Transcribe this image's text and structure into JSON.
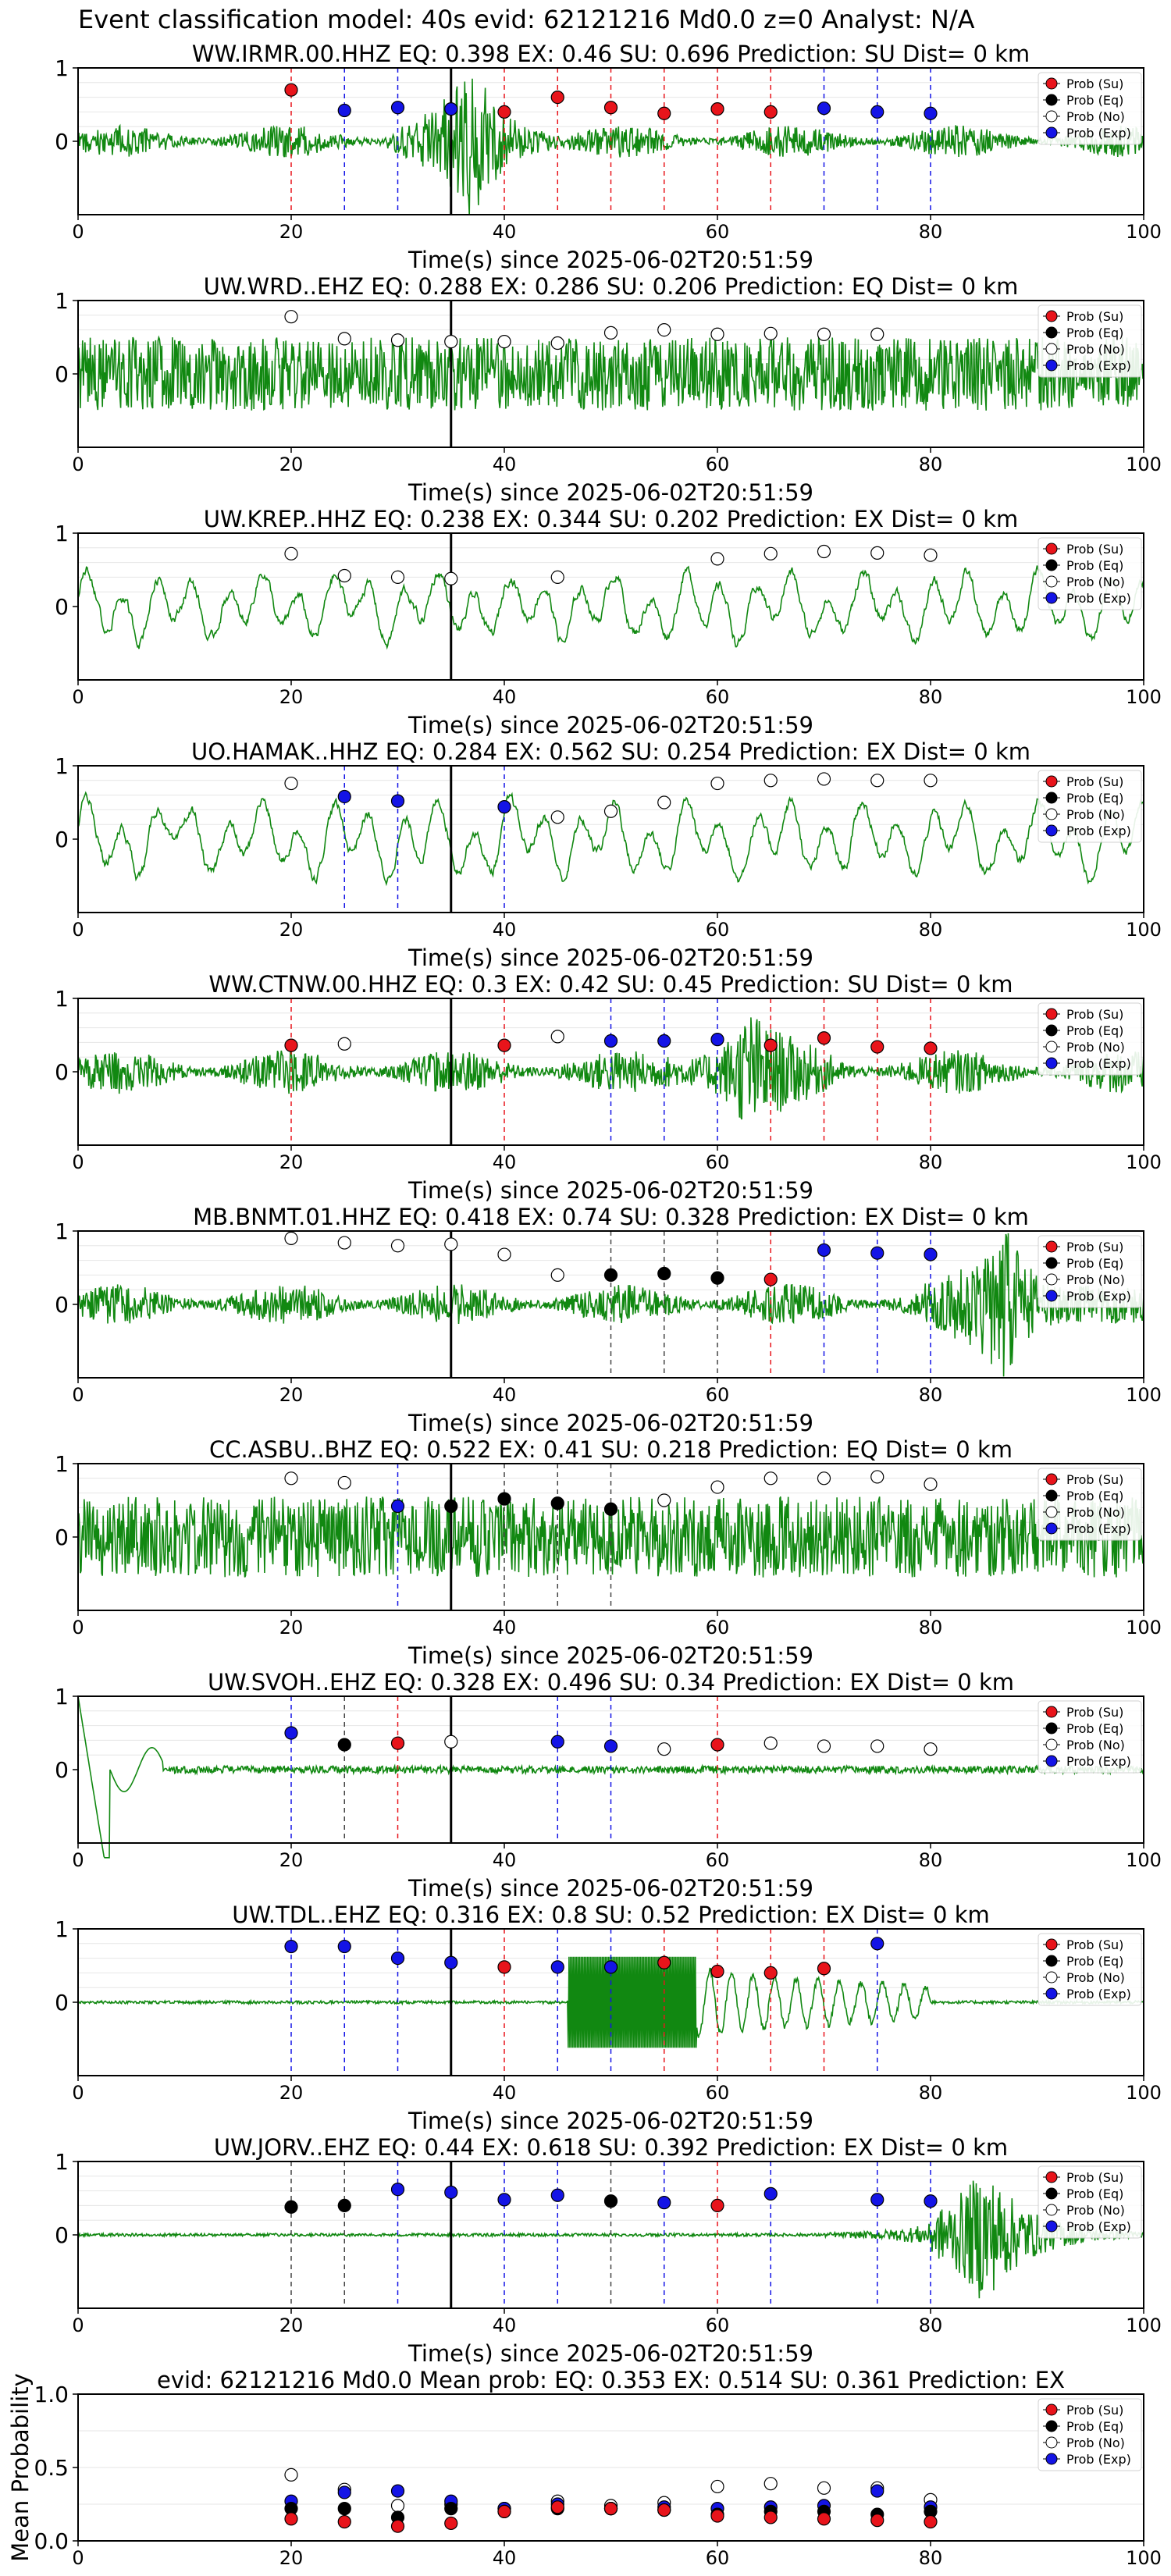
{
  "page_title": "Event classification model: 40s evid: 62121216 Md0.0 z=0 Analyst: N/A",
  "colors": {
    "Su": "#e8141b",
    "Eq": "#000000",
    "No": "#ffffff",
    "Exp": "#1414e6",
    "waveform": "#118811",
    "event_marker": "#000000"
  },
  "legend_labels": [
    "Prob (Su)",
    "Prob (Eq)",
    "Prob (No)",
    "Prob (Exp)"
  ],
  "event_marker_time": 35,
  "chart_data": [
    {
      "type": "line",
      "title": "WW.IRMR.00.HHZ   EQ: 0.398   EX: 0.46   SU: 0.696   Prediction: SU    Dist= 0 km",
      "xlabel": "Time(s) since 2025-06-02T20:51:59",
      "ylabel": "",
      "xlim": [
        0,
        100
      ],
      "ylim": [
        -1,
        1
      ],
      "xticks": [
        "0",
        "20",
        "40",
        "60",
        "80",
        "100"
      ],
      "yticks": [
        "1",
        "0"
      ],
      "waveform": {
        "style": "moderate-noise",
        "amplitude": 0.22,
        "burst_at": 37,
        "burst_amplitude": 0.9
      },
      "points": [
        {
          "x": 20,
          "y": 0.7,
          "cls": "Su"
        },
        {
          "x": 25,
          "y": 0.42,
          "cls": "Exp"
        },
        {
          "x": 30,
          "y": 0.46,
          "cls": "Exp"
        },
        {
          "x": 35,
          "y": 0.44,
          "cls": "Exp"
        },
        {
          "x": 40,
          "y": 0.4,
          "cls": "Su"
        },
        {
          "x": 45,
          "y": 0.6,
          "cls": "Su"
        },
        {
          "x": 50,
          "y": 0.46,
          "cls": "Su"
        },
        {
          "x": 55,
          "y": 0.38,
          "cls": "Su"
        },
        {
          "x": 60,
          "y": 0.44,
          "cls": "Su"
        },
        {
          "x": 65,
          "y": 0.4,
          "cls": "Su"
        },
        {
          "x": 70,
          "y": 0.45,
          "cls": "Exp"
        },
        {
          "x": 75,
          "y": 0.4,
          "cls": "Exp"
        },
        {
          "x": 80,
          "y": 0.38,
          "cls": "Exp"
        }
      ]
    },
    {
      "type": "line",
      "title": "UW.WRD..EHZ   EQ: 0.288  EX: 0.286  SU: 0.206   Prediction: EQ    Dist= 0 km",
      "xlabel": "Time(s) since 2025-06-02T20:51:59",
      "ylabel": "",
      "xlim": [
        0,
        100
      ],
      "ylim": [
        -1,
        1
      ],
      "xticks": [
        "0",
        "20",
        "40",
        "60",
        "80",
        "100"
      ],
      "yticks": [
        "1",
        "0"
      ],
      "waveform": {
        "style": "dense-noise",
        "amplitude": 0.5
      },
      "points": [
        {
          "x": 20,
          "y": 0.78,
          "cls": "No"
        },
        {
          "x": 25,
          "y": 0.48,
          "cls": "No"
        },
        {
          "x": 30,
          "y": 0.46,
          "cls": "No"
        },
        {
          "x": 35,
          "y": 0.44,
          "cls": "No"
        },
        {
          "x": 40,
          "y": 0.44,
          "cls": "No"
        },
        {
          "x": 45,
          "y": 0.42,
          "cls": "No"
        },
        {
          "x": 50,
          "y": 0.56,
          "cls": "No"
        },
        {
          "x": 55,
          "y": 0.6,
          "cls": "No"
        },
        {
          "x": 60,
          "y": 0.54,
          "cls": "No"
        },
        {
          "x": 65,
          "y": 0.55,
          "cls": "No"
        },
        {
          "x": 70,
          "y": 0.54,
          "cls": "No"
        },
        {
          "x": 75,
          "y": 0.54,
          "cls": "No"
        }
      ]
    },
    {
      "type": "line",
      "title": "UW.KREP..HHZ   EQ: 0.238  EX: 0.344  SU: 0.202   Prediction: EX    Dist= 0 km",
      "xlabel": "Time(s) since 2025-06-02T20:51:59",
      "ylabel": "",
      "xlim": [
        0,
        100
      ],
      "ylim": [
        -1,
        1
      ],
      "xticks": [
        "0",
        "20",
        "40",
        "60",
        "80",
        "100"
      ],
      "yticks": [
        "1",
        "0"
      ],
      "waveform": {
        "style": "low-freq",
        "amplitude": 0.55
      },
      "points": [
        {
          "x": 20,
          "y": 0.72,
          "cls": "No"
        },
        {
          "x": 25,
          "y": 0.42,
          "cls": "No"
        },
        {
          "x": 30,
          "y": 0.4,
          "cls": "No"
        },
        {
          "x": 35,
          "y": 0.38,
          "cls": "No"
        },
        {
          "x": 45,
          "y": 0.4,
          "cls": "No"
        },
        {
          "x": 60,
          "y": 0.65,
          "cls": "No"
        },
        {
          "x": 65,
          "y": 0.72,
          "cls": "No"
        },
        {
          "x": 70,
          "y": 0.75,
          "cls": "No"
        },
        {
          "x": 75,
          "y": 0.73,
          "cls": "No"
        },
        {
          "x": 80,
          "y": 0.7,
          "cls": "No"
        }
      ]
    },
    {
      "type": "line",
      "title": "UO.HAMAK..HHZ   EQ: 0.284  EX: 0.562  SU: 0.254   Prediction: EX    Dist= 0 km",
      "xlabel": "Time(s) since 2025-06-02T20:51:59",
      "ylabel": "",
      "xlim": [
        0,
        100
      ],
      "ylim": [
        -1,
        1
      ],
      "xticks": [
        "0",
        "20",
        "40",
        "60",
        "80",
        "100"
      ],
      "yticks": [
        "1",
        "0"
      ],
      "waveform": {
        "style": "low-freq",
        "amplitude": 0.6
      },
      "points": [
        {
          "x": 20,
          "y": 0.76,
          "cls": "No"
        },
        {
          "x": 25,
          "y": 0.58,
          "cls": "Exp"
        },
        {
          "x": 30,
          "y": 0.52,
          "cls": "Exp"
        },
        {
          "x": 40,
          "y": 0.44,
          "cls": "Exp"
        },
        {
          "x": 45,
          "y": 0.3,
          "cls": "No"
        },
        {
          "x": 50,
          "y": 0.38,
          "cls": "No"
        },
        {
          "x": 55,
          "y": 0.5,
          "cls": "No"
        },
        {
          "x": 60,
          "y": 0.76,
          "cls": "No"
        },
        {
          "x": 65,
          "y": 0.8,
          "cls": "No"
        },
        {
          "x": 70,
          "y": 0.82,
          "cls": "No"
        },
        {
          "x": 75,
          "y": 0.8,
          "cls": "No"
        },
        {
          "x": 80,
          "y": 0.8,
          "cls": "No"
        }
      ]
    },
    {
      "type": "line",
      "title": "WW.CTNW.00.HHZ   EQ: 0.3  EX: 0.42  SU: 0.45   Prediction: SU    Dist= 0 km",
      "xlabel": "Time(s) since 2025-06-02T20:51:59",
      "ylabel": "",
      "xlim": [
        0,
        100
      ],
      "ylim": [
        -1,
        1
      ],
      "xticks": [
        "0",
        "20",
        "40",
        "60",
        "80",
        "100"
      ],
      "yticks": [
        "1",
        "0"
      ],
      "waveform": {
        "style": "moderate-noise",
        "amplitude": 0.3,
        "burst_at": 63,
        "burst_amplitude": 0.7
      },
      "points": [
        {
          "x": 20,
          "y": 0.36,
          "cls": "Su"
        },
        {
          "x": 25,
          "y": 0.38,
          "cls": "No"
        },
        {
          "x": 40,
          "y": 0.36,
          "cls": "Su"
        },
        {
          "x": 45,
          "y": 0.48,
          "cls": "No"
        },
        {
          "x": 50,
          "y": 0.42,
          "cls": "Exp"
        },
        {
          "x": 55,
          "y": 0.42,
          "cls": "Exp"
        },
        {
          "x": 60,
          "y": 0.44,
          "cls": "Exp"
        },
        {
          "x": 65,
          "y": 0.36,
          "cls": "Su"
        },
        {
          "x": 70,
          "y": 0.46,
          "cls": "Su"
        },
        {
          "x": 75,
          "y": 0.34,
          "cls": "Su"
        },
        {
          "x": 80,
          "y": 0.32,
          "cls": "Su"
        }
      ]
    },
    {
      "type": "line",
      "title": "MB.BNMT.01.HHZ   EQ: 0.418  EX: 0.74  SU: 0.328   Prediction: EX    Dist= 0 km",
      "xlabel": "Time(s) since 2025-06-02T20:51:59",
      "ylabel": "",
      "xlim": [
        0,
        100
      ],
      "ylim": [
        -1,
        1
      ],
      "xticks": [
        "0",
        "20",
        "40",
        "60",
        "80",
        "100"
      ],
      "yticks": [
        "1",
        "0"
      ],
      "waveform": {
        "style": "moderate-noise",
        "amplitude": 0.28,
        "burst_at": 87,
        "burst_amplitude": 0.95
      },
      "points": [
        {
          "x": 20,
          "y": 0.9,
          "cls": "No"
        },
        {
          "x": 25,
          "y": 0.84,
          "cls": "No"
        },
        {
          "x": 30,
          "y": 0.8,
          "cls": "No"
        },
        {
          "x": 35,
          "y": 0.82,
          "cls": "No"
        },
        {
          "x": 40,
          "y": 0.68,
          "cls": "No"
        },
        {
          "x": 45,
          "y": 0.4,
          "cls": "No"
        },
        {
          "x": 50,
          "y": 0.4,
          "cls": "Eq"
        },
        {
          "x": 55,
          "y": 0.42,
          "cls": "Eq"
        },
        {
          "x": 60,
          "y": 0.36,
          "cls": "Eq"
        },
        {
          "x": 65,
          "y": 0.34,
          "cls": "Su"
        },
        {
          "x": 70,
          "y": 0.74,
          "cls": "Exp"
        },
        {
          "x": 75,
          "y": 0.7,
          "cls": "Exp"
        },
        {
          "x": 80,
          "y": 0.68,
          "cls": "Exp"
        }
      ]
    },
    {
      "type": "line",
      "title": "CC.ASBU..BHZ   EQ: 0.522  EX: 0.41  SU: 0.218   Prediction: EQ    Dist= 0 km",
      "xlabel": "Time(s) since 2025-06-02T20:51:59",
      "ylabel": "",
      "xlim": [
        0,
        100
      ],
      "ylim": [
        -1,
        1
      ],
      "xticks": [
        "0",
        "20",
        "40",
        "60",
        "80",
        "100"
      ],
      "yticks": [
        "1",
        "0"
      ],
      "waveform": {
        "style": "dense-noise",
        "amplitude": 0.55
      },
      "points": [
        {
          "x": 20,
          "y": 0.8,
          "cls": "No"
        },
        {
          "x": 25,
          "y": 0.74,
          "cls": "No"
        },
        {
          "x": 30,
          "y": 0.42,
          "cls": "Exp"
        },
        {
          "x": 35,
          "y": 0.42,
          "cls": "Eq"
        },
        {
          "x": 40,
          "y": 0.52,
          "cls": "Eq"
        },
        {
          "x": 45,
          "y": 0.46,
          "cls": "Eq"
        },
        {
          "x": 50,
          "y": 0.38,
          "cls": "Eq"
        },
        {
          "x": 55,
          "y": 0.5,
          "cls": "No"
        },
        {
          "x": 60,
          "y": 0.68,
          "cls": "No"
        },
        {
          "x": 65,
          "y": 0.8,
          "cls": "No"
        },
        {
          "x": 70,
          "y": 0.8,
          "cls": "No"
        },
        {
          "x": 75,
          "y": 0.82,
          "cls": "No"
        },
        {
          "x": 80,
          "y": 0.72,
          "cls": "No"
        }
      ]
    },
    {
      "type": "line",
      "title": "UW.SVOH..EHZ   EQ: 0.328  EX: 0.496  SU: 0.34   Prediction: EX    Dist= 0 km",
      "xlabel": "Time(s) since 2025-06-02T20:51:59",
      "ylabel": "",
      "xlim": [
        0,
        100
      ],
      "ylim": [
        -1,
        1
      ],
      "xticks": [
        "0",
        "20",
        "40",
        "60",
        "80",
        "100"
      ],
      "yticks": [
        "1",
        "0"
      ],
      "waveform": {
        "style": "spike-start",
        "amplitude": 0.05
      },
      "points": [
        {
          "x": 20,
          "y": 0.5,
          "cls": "Exp"
        },
        {
          "x": 25,
          "y": 0.34,
          "cls": "Eq"
        },
        {
          "x": 30,
          "y": 0.36,
          "cls": "Su"
        },
        {
          "x": 35,
          "y": 0.38,
          "cls": "No"
        },
        {
          "x": 45,
          "y": 0.38,
          "cls": "Exp"
        },
        {
          "x": 50,
          "y": 0.32,
          "cls": "Exp"
        },
        {
          "x": 55,
          "y": 0.28,
          "cls": "No"
        },
        {
          "x": 60,
          "y": 0.34,
          "cls": "Su"
        },
        {
          "x": 65,
          "y": 0.36,
          "cls": "No"
        },
        {
          "x": 70,
          "y": 0.32,
          "cls": "No"
        },
        {
          "x": 75,
          "y": 0.32,
          "cls": "No"
        },
        {
          "x": 80,
          "y": 0.28,
          "cls": "No"
        }
      ]
    },
    {
      "type": "line",
      "title": "UW.TDL..EHZ   EQ: 0.316  EX: 0.8  SU: 0.52   Prediction: EX    Dist= 0 km",
      "xlabel": "Time(s) since 2025-06-02T20:51:59",
      "ylabel": "",
      "xlim": [
        0,
        100
      ],
      "ylim": [
        -1,
        1
      ],
      "xticks": [
        "0",
        "20",
        "40",
        "60",
        "80",
        "100"
      ],
      "yticks": [
        "1",
        "0"
      ],
      "waveform": {
        "style": "block-burst",
        "amplitude": 0.02,
        "block_from": 46,
        "block_to": 58
      },
      "points": [
        {
          "x": 20,
          "y": 0.76,
          "cls": "Exp"
        },
        {
          "x": 25,
          "y": 0.76,
          "cls": "Exp"
        },
        {
          "x": 30,
          "y": 0.6,
          "cls": "Exp"
        },
        {
          "x": 35,
          "y": 0.54,
          "cls": "Exp"
        },
        {
          "x": 40,
          "y": 0.48,
          "cls": "Su"
        },
        {
          "x": 45,
          "y": 0.48,
          "cls": "Exp"
        },
        {
          "x": 50,
          "y": 0.48,
          "cls": "Exp"
        },
        {
          "x": 55,
          "y": 0.54,
          "cls": "Su"
        },
        {
          "x": 60,
          "y": 0.42,
          "cls": "Su"
        },
        {
          "x": 65,
          "y": 0.4,
          "cls": "Su"
        },
        {
          "x": 70,
          "y": 0.46,
          "cls": "Su"
        },
        {
          "x": 75,
          "y": 0.8,
          "cls": "Exp"
        }
      ]
    },
    {
      "type": "line",
      "title": "UW.JORV..EHZ   EQ: 0.44  EX: 0.618  SU: 0.392   Prediction: EX    Dist= 0 km",
      "xlabel": "Time(s) since 2025-06-02T20:51:59",
      "ylabel": "",
      "xlim": [
        0,
        100
      ],
      "ylim": [
        -1,
        1
      ],
      "xticks": [
        "0",
        "20",
        "40",
        "60",
        "80",
        "100"
      ],
      "yticks": [
        "1",
        "0"
      ],
      "waveform": {
        "style": "late-burst",
        "amplitude": 0.02,
        "burst_at": 85,
        "burst_amplitude": 0.95
      },
      "points": [
        {
          "x": 20,
          "y": 0.38,
          "cls": "Eq"
        },
        {
          "x": 25,
          "y": 0.4,
          "cls": "Eq"
        },
        {
          "x": 30,
          "y": 0.62,
          "cls": "Exp"
        },
        {
          "x": 35,
          "y": 0.58,
          "cls": "Exp"
        },
        {
          "x": 40,
          "y": 0.48,
          "cls": "Exp"
        },
        {
          "x": 45,
          "y": 0.54,
          "cls": "Exp"
        },
        {
          "x": 50,
          "y": 0.46,
          "cls": "Eq"
        },
        {
          "x": 55,
          "y": 0.44,
          "cls": "Exp"
        },
        {
          "x": 60,
          "y": 0.4,
          "cls": "Su"
        },
        {
          "x": 65,
          "y": 0.56,
          "cls": "Exp"
        },
        {
          "x": 75,
          "y": 0.48,
          "cls": "Exp"
        },
        {
          "x": 80,
          "y": 0.46,
          "cls": "Exp"
        }
      ]
    },
    {
      "type": "scatter",
      "title": "evid: 62121216  Md0.0   Mean prob:   EQ: 0.353  EX: 0.514  SU: 0.361   Prediction: EX",
      "xlabel": "",
      "ylabel": "Mean Probability",
      "xlim": [
        0,
        100
      ],
      "ylim": [
        0,
        1
      ],
      "xticks": [
        "0",
        "20",
        "40",
        "60",
        "80",
        "100"
      ],
      "yticks": [
        "0.0",
        "0.5",
        "1.0"
      ],
      "series": [
        {
          "name": "Prob (No)",
          "cls": "No",
          "x": [
            20,
            25,
            30,
            35,
            40,
            45,
            50,
            55,
            60,
            65,
            70,
            75,
            80
          ],
          "values": [
            0.45,
            0.35,
            0.24,
            0.25,
            0.22,
            0.27,
            0.24,
            0.26,
            0.37,
            0.39,
            0.36,
            0.36,
            0.28
          ]
        },
        {
          "name": "Prob (Exp)",
          "cls": "Exp",
          "x": [
            20,
            25,
            30,
            35,
            40,
            45,
            50,
            55,
            60,
            65,
            70,
            75,
            80
          ],
          "values": [
            0.27,
            0.33,
            0.34,
            0.27,
            0.22,
            0.25,
            0.22,
            0.23,
            0.22,
            0.23,
            0.24,
            0.34,
            0.23
          ]
        },
        {
          "name": "Prob (Eq)",
          "cls": "Eq",
          "x": [
            20,
            25,
            30,
            35,
            40,
            45,
            50,
            55,
            60,
            65,
            70,
            75,
            80
          ],
          "values": [
            0.22,
            0.22,
            0.16,
            0.22,
            0.2,
            0.22,
            0.22,
            0.21,
            0.18,
            0.2,
            0.2,
            0.18,
            0.2
          ]
        },
        {
          "name": "Prob (Su)",
          "cls": "Su",
          "x": [
            20,
            25,
            30,
            35,
            40,
            45,
            50,
            55,
            60,
            65,
            70,
            75,
            80
          ],
          "values": [
            0.15,
            0.13,
            0.1,
            0.12,
            0.2,
            0.23,
            0.22,
            0.21,
            0.17,
            0.16,
            0.15,
            0.14,
            0.13
          ]
        }
      ]
    }
  ]
}
